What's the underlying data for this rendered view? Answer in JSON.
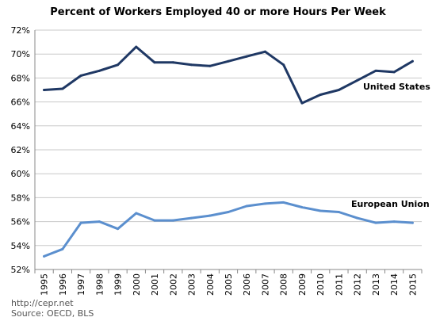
{
  "chart_data": {
    "type": "line",
    "title": "Percent of Workers Employed 40 or more Hours Per Week",
    "xlabel": "",
    "ylabel": "",
    "x": [
      "1995",
      "1996",
      "1997",
      "1998",
      "1999",
      "2000",
      "2001",
      "2002",
      "2003",
      "2004",
      "2005",
      "2006",
      "2007",
      "2008",
      "2009",
      "2010",
      "2011",
      "2012",
      "2013",
      "2014",
      "2015"
    ],
    "ylim": [
      52,
      72
    ],
    "yticks": [
      "52%",
      "54%",
      "56%",
      "58%",
      "60%",
      "62%",
      "64%",
      "66%",
      "68%",
      "70%",
      "72%"
    ],
    "grid": true,
    "series": [
      {
        "name": "United States",
        "color": "#1f3864",
        "values": [
          67.0,
          67.1,
          68.2,
          68.6,
          69.1,
          70.6,
          69.3,
          69.3,
          69.1,
          69.0,
          69.4,
          69.8,
          70.2,
          69.1,
          65.9,
          66.6,
          67.0,
          67.8,
          68.6,
          68.5,
          69.4
        ]
      },
      {
        "name": "European Union",
        "color": "#5b8fce",
        "values": [
          53.1,
          53.7,
          55.9,
          56.0,
          55.4,
          56.7,
          56.1,
          56.1,
          56.3,
          56.5,
          56.8,
          57.3,
          57.5,
          57.6,
          57.2,
          56.9,
          56.8,
          56.3,
          55.9,
          56.0,
          55.9
        ]
      }
    ]
  },
  "source": {
    "url": "http://cepr.net",
    "text": "Source: OECD, BLS"
  }
}
